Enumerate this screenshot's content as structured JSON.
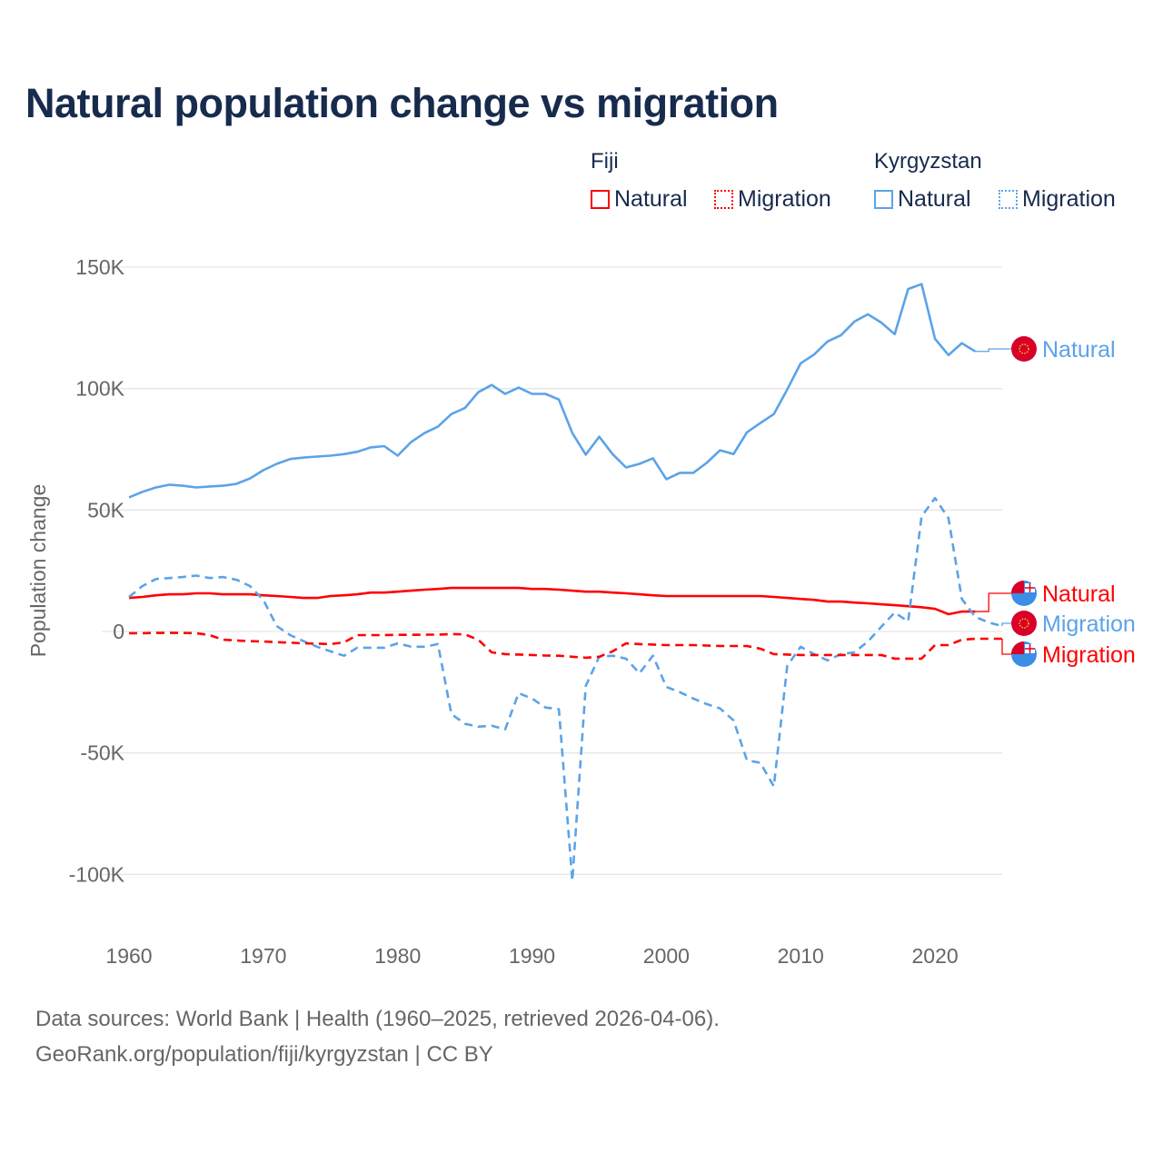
{
  "title": "Natural population change vs migration",
  "legend": {
    "groups": [
      {
        "country": "Fiji",
        "items": [
          "Natural",
          "Migration"
        ],
        "color": "#ff0000"
      },
      {
        "country": "Kyrgyzstan",
        "items": [
          "Natural",
          "Migration"
        ],
        "color": "#5ba3e8"
      }
    ]
  },
  "footer": {
    "line1": "Data sources: World Bank | Health (1960–2025, retrieved 2026-04-06).",
    "line2": "GeoRank.org/population/fiji/kyrgyzstan | CC BY"
  },
  "chart_data": {
    "type": "line",
    "title": "Natural population change vs migration",
    "xlabel": "",
    "ylabel": "Population change",
    "xlim": [
      1960,
      2025
    ],
    "ylim": [
      -100000,
      150000
    ],
    "x_ticks": [
      "1960",
      "1970",
      "1980",
      "1990",
      "2000",
      "2010",
      "2020"
    ],
    "x_tick_values": [
      1960,
      1970,
      1980,
      1990,
      2000,
      2010,
      2020
    ],
    "y_ticks": [
      "150K",
      "100K",
      "50K",
      "0",
      "-50K",
      "-100K"
    ],
    "y_tick_values": [
      150000,
      100000,
      50000,
      0,
      -50000,
      -100000
    ],
    "grid": true,
    "legend_position": "top-right",
    "start_year": 1960,
    "series": [
      {
        "name": "Kyrgyzstan Natural",
        "end_label": "Natural",
        "color": "#5ba3e8",
        "dashed": false,
        "flag": "kyrgyzstan",
        "values_k": [
          55.2,
          57.5,
          59.3,
          60.4,
          60,
          59.3,
          59.7,
          60,
          60.8,
          63,
          66.4,
          69,
          71,
          71.6,
          72,
          72.4,
          73,
          74,
          75.8,
          76.3,
          72.4,
          78,
          81.7,
          84.3,
          89.5,
          92,
          98.5,
          101.5,
          97.8,
          100.4,
          97.8,
          97.8,
          95.5,
          81.7,
          72.8,
          80.2,
          73,
          67.5,
          69,
          71.3,
          62.7,
          65.3,
          65.3,
          69.4,
          74.6,
          73,
          82,
          85.8,
          89.5,
          99.6,
          110.4,
          114,
          119.4,
          122,
          127.6,
          130.6,
          127.2,
          122.4,
          141,
          143,
          120.5,
          113.8,
          118.7,
          115.3
        ]
      },
      {
        "name": "Fiji Natural",
        "end_label": "Natural",
        "color": "#ff0000",
        "dashed": false,
        "flag": "fiji",
        "values_k": [
          13.8,
          14.2,
          14.9,
          15.3,
          15.3,
          15.7,
          15.7,
          15.3,
          15.3,
          15.3,
          14.9,
          14.6,
          14.2,
          13.8,
          13.8,
          14.6,
          14.9,
          15.3,
          16,
          16,
          16.4,
          16.8,
          17.2,
          17.5,
          17.9,
          17.9,
          17.9,
          17.9,
          17.9,
          17.9,
          17.5,
          17.5,
          17.2,
          16.8,
          16.4,
          16.4,
          16,
          15.7,
          15.3,
          14.9,
          14.6,
          14.6,
          14.6,
          14.6,
          14.6,
          14.6,
          14.6,
          14.6,
          14.2,
          13.8,
          13.4,
          13,
          12.3,
          12.3,
          11.9,
          11.6,
          11.2,
          10.8,
          10.4,
          10,
          9.3,
          7.1,
          8.2,
          8.2
        ]
      },
      {
        "name": "Kyrgyzstan Migration",
        "end_label": "Migration",
        "color": "#5ba3e8",
        "dashed": true,
        "flag": "kyrgyzstan",
        "values_k": [
          14.2,
          18.7,
          21.6,
          22,
          22.4,
          23,
          22,
          22.4,
          21.3,
          18.7,
          13,
          2.2,
          -1.5,
          -4,
          -6.3,
          -8.2,
          -10,
          -6.7,
          -6.7,
          -6.7,
          -4.9,
          -6.3,
          -6.3,
          -5.2,
          -34,
          -38,
          -39.2,
          -38.8,
          -40.3,
          -25.4,
          -27.6,
          -31.3,
          -32,
          -102.6,
          -22.4,
          -10.4,
          -10,
          -11.2,
          -17.2,
          -10,
          -22.8,
          -25,
          -27.6,
          -29.9,
          -31.7,
          -36.6,
          -53,
          -54.1,
          -63.8,
          -14.2,
          -6.3,
          -9.3,
          -11.9,
          -9.3,
          -8.6,
          -4.1,
          1.9,
          7.8,
          4.1,
          47.4,
          54.9,
          46.6,
          13.4,
          6,
          3.7,
          2.2
        ]
      },
      {
        "name": "Fiji Migration",
        "end_label": "Migration",
        "color": "#ff0000",
        "dashed": true,
        "flag": "fiji",
        "values_k": [
          -0.7,
          -0.7,
          -0.6,
          -0.6,
          -0.6,
          -0.7,
          -1.5,
          -3.4,
          -3.7,
          -4,
          -4.1,
          -4.4,
          -4.6,
          -4.9,
          -5,
          -5.2,
          -4.5,
          -1.5,
          -1.5,
          -1.5,
          -1.4,
          -1.4,
          -1.3,
          -1.3,
          -1.1,
          -1.2,
          -3.4,
          -8.6,
          -9.3,
          -9.5,
          -9.7,
          -9.9,
          -10,
          -10.4,
          -10.8,
          -10.4,
          -8.2,
          -4.9,
          -5.2,
          -5.4,
          -5.6,
          -5.6,
          -5.6,
          -5.8,
          -6,
          -6,
          -6,
          -7.1,
          -9.3,
          -9.5,
          -9.7,
          -9.7,
          -9.7,
          -9.7,
          -9.7,
          -9.7,
          -9.7,
          -11.2,
          -11.2,
          -11.2,
          -5.6,
          -5.6,
          -3.4,
          -3,
          -3,
          -3
        ]
      }
    ]
  }
}
